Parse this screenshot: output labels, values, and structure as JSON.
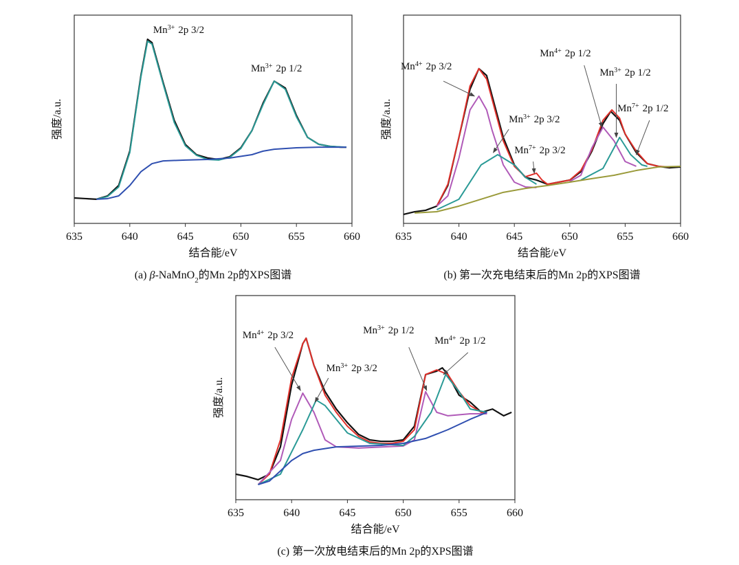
{
  "chart_data": [
    {
      "type": "line",
      "xlabel": "结合能/eV",
      "ylabel": "强度/a.u.",
      "caption": [
        {
          "text": "(a) "
        },
        {
          "text": "β",
          "style": "italic"
        },
        {
          "text": "-NaMnO"
        },
        {
          "text": "2",
          "style": "sub"
        },
        {
          "text": "的Mn 2p的XPS图谱"
        }
      ],
      "xlim": [
        635,
        660
      ],
      "xticks": [
        635,
        640,
        645,
        650,
        655,
        660
      ],
      "ylim": [
        0,
        100
      ],
      "series": [
        {
          "color": "#111111",
          "x": [
            635,
            636,
            637,
            638,
            639,
            640,
            641,
            641.6,
            642,
            643,
            644,
            645,
            646,
            647,
            648,
            649,
            650,
            651,
            652,
            653,
            654,
            655,
            656,
            657,
            658,
            659,
            659.5
          ],
          "values": [
            12.2,
            11.9,
            11.6,
            13.2,
            18.2,
            34.7,
            71.0,
            88.4,
            86.8,
            67.7,
            49.5,
            37.9,
            33.0,
            31.4,
            30.7,
            32.0,
            36.3,
            44.6,
            57.8,
            68.3,
            65.0,
            51.8,
            41.3,
            38.0,
            37.0,
            36.6,
            36.6
          ]
        },
        {
          "color": "#2a9a96",
          "x": [
            637,
            638,
            639,
            640,
            641,
            641.6,
            642,
            643,
            644,
            645,
            646,
            647,
            648,
            649,
            650,
            651,
            652,
            653,
            654,
            655,
            656,
            657,
            658,
            659.5
          ],
          "values": [
            11.6,
            12.9,
            17.5,
            34.0,
            70.3,
            87.5,
            86.1,
            67.0,
            48.5,
            37.3,
            32.7,
            30.7,
            30.4,
            31.7,
            36.0,
            44.6,
            57.1,
            68.3,
            64.4,
            51.2,
            41.3,
            38.0,
            37.0,
            36.6
          ]
        },
        {
          "color": "#2f4fb0",
          "x": [
            637,
            638,
            639,
            640,
            641,
            642,
            643,
            645,
            647,
            649,
            651,
            652,
            653,
            655,
            657,
            659.5
          ],
          "values": [
            11.6,
            11.9,
            13.2,
            18.2,
            24.8,
            28.7,
            30.0,
            30.4,
            30.7,
            31.4,
            33.0,
            34.7,
            35.6,
            36.3,
            36.6,
            36.6
          ]
        }
      ],
      "annotations": [
        {
          "ion": "Mn",
          "charge": "3+",
          "orbital": "2p 3/2",
          "x": 642.1,
          "y": 91.4
        },
        {
          "ion": "Mn",
          "charge": "3+",
          "orbital": "2p 1/2",
          "x": 650.9,
          "y": 72.9
        }
      ]
    },
    {
      "type": "line",
      "xlabel": "结合能/eV",
      "ylabel": "强度/a.u.",
      "caption": [
        {
          "text": "(b) 第一次充电结束后的Mn 2p的XPS图谱"
        }
      ],
      "xlim": [
        635,
        660
      ],
      "xticks": [
        635,
        640,
        645,
        650,
        655,
        660
      ],
      "ylim": [
        0,
        100
      ],
      "series": [
        {
          "color": "#111111",
          "x": [
            635,
            636,
            637,
            638,
            639,
            640,
            641,
            641.8,
            642.5,
            643,
            644,
            645,
            646,
            647,
            648,
            649,
            650,
            651,
            652,
            653,
            653.7,
            654.5,
            655,
            656,
            657,
            658,
            659,
            660
          ],
          "values": [
            4.3,
            5.6,
            6.3,
            8.3,
            18.2,
            41.3,
            64.4,
            74.3,
            71.0,
            61.1,
            41.3,
            28.1,
            22.1,
            20.8,
            18.8,
            19.8,
            20.8,
            24.8,
            34.7,
            47.9,
            53.8,
            49.5,
            42.9,
            34.0,
            28.7,
            27.4,
            26.7,
            27.1
          ]
        },
        {
          "color": "#e0302a",
          "x": [
            638,
            639,
            640,
            641,
            641.8,
            642.5,
            643,
            644,
            645,
            646,
            647,
            647.5,
            648,
            649,
            650,
            651,
            652,
            653,
            653.8,
            654.5,
            655,
            656,
            657,
            658,
            659
          ],
          "values": [
            8.3,
            18.8,
            41.3,
            66.0,
            74.3,
            69.3,
            59.4,
            39.6,
            27.4,
            22.4,
            24.1,
            20.8,
            18.8,
            19.8,
            20.8,
            25.4,
            35.3,
            49.5,
            54.5,
            50.5,
            42.9,
            34.7,
            28.7,
            27.4,
            27.1
          ]
        },
        {
          "color": "#b05ab8",
          "x": [
            638,
            639,
            640,
            641,
            641.8,
            642.5,
            643,
            644,
            645,
            646,
            647,
            648,
            650,
            651,
            652,
            653,
            654,
            655,
            656
          ],
          "values": [
            8.3,
            13.2,
            31.4,
            54.5,
            61.1,
            54.5,
            44.6,
            28.1,
            19.8,
            17.5,
            17.2,
            null,
            20.1,
            23.1,
            36.3,
            46.2,
            39.6,
            29.7,
            27.4
          ]
        },
        {
          "color": "#2a9a96",
          "x": [
            638,
            640,
            642,
            643.5,
            645,
            646,
            647,
            649,
            651,
            653,
            654.5,
            655.5,
            656.5,
            657
          ],
          "values": [
            6.6,
            11.6,
            28.1,
            33.0,
            28.1,
            22.1,
            18.8,
            null,
            20.8,
            26.4,
            41.3,
            33.0,
            28.1,
            27.4
          ]
        },
        {
          "color": "#9a9a3a",
          "x": [
            636,
            638,
            640,
            642,
            644,
            646,
            648,
            650,
            652,
            654,
            656,
            658,
            660
          ],
          "values": [
            5.0,
            5.6,
            8.3,
            11.6,
            14.9,
            16.8,
            18.2,
            19.8,
            21.5,
            23.1,
            25.4,
            27.1,
            27.4
          ]
        }
      ],
      "annotations": [
        {
          "ion": "Mn",
          "charge": "4+",
          "orbital": "2p 3/2",
          "x": 634.75,
          "y": 73.9,
          "arrow": [
            [
              638.6,
              68.3
            ],
            [
              641.4,
              61.1
            ]
          ]
        },
        {
          "ion": "Mn",
          "charge": "4+",
          "orbital": "2p 1/2",
          "x": 647.3,
          "y": 80.2,
          "arrow": [
            [
              651.3,
              75.9
            ],
            [
              652.9,
              46.2
            ]
          ]
        },
        {
          "ion": "Mn",
          "charge": "3+",
          "orbital": "2p 1/2",
          "x": 652.7,
          "y": 71.0,
          "arrow": [
            [
              654.2,
              67.0
            ],
            [
              654.2,
              41.3
            ]
          ]
        },
        {
          "ion": "Mn",
          "charge": "7+",
          "orbital": "2p 1/2",
          "x": 654.3,
          "y": 53.8,
          "arrow": [
            [
              657.2,
              49.5
            ],
            [
              656.0,
              33.0
            ]
          ]
        },
        {
          "ion": "Mn",
          "charge": "3+",
          "orbital": "2p 3/2",
          "x": 644.5,
          "y": 48.5,
          "arrow": [
            [
              644.5,
              45.2
            ],
            [
              643.1,
              34.0
            ]
          ]
        },
        {
          "ion": "Mn",
          "charge": "7+",
          "orbital": "2p 3/2",
          "x": 645.0,
          "y": 33.7,
          "arrow": [
            [
              646.7,
              29.7
            ],
            [
              646.8,
              24.1
            ]
          ]
        }
      ]
    },
    {
      "type": "line",
      "xlabel": "结合能/eV",
      "ylabel": "强度/a.u.",
      "caption": [
        {
          "text": "(c) 第一次放电结束后的Mn 2p的XPS图谱"
        }
      ],
      "xlim": [
        635,
        660
      ],
      "xticks": [
        635,
        640,
        645,
        650,
        655,
        660
      ],
      "ylim": [
        0,
        100
      ],
      "series": [
        {
          "color": "#111111",
          "x": [
            635,
            636,
            637,
            638,
            639,
            640,
            641,
            641.3,
            642,
            643,
            644,
            645,
            646,
            647,
            648,
            649,
            650,
            651,
            652,
            653,
            653.5,
            654,
            655,
            656,
            657,
            658,
            659,
            659.7
          ],
          "values": [
            12.5,
            11.4,
            9.8,
            12.5,
            25.9,
            56.2,
            76.4,
            79.1,
            65.8,
            52.9,
            44.4,
            37.7,
            32.0,
            29.3,
            28.6,
            28.6,
            29.3,
            36.0,
            61.3,
            63.0,
            64.6,
            61.3,
            51.2,
            47.8,
            42.8,
            44.4,
            41.1,
            42.8
          ]
        },
        {
          "color": "#e0302a",
          "x": [
            637,
            638,
            639,
            640,
            641,
            641.3,
            642,
            643,
            644,
            645,
            646,
            647,
            648,
            649,
            650,
            651,
            652,
            653,
            654,
            655,
            656,
            657,
            657.5
          ],
          "values": [
            7.4,
            12.5,
            29.3,
            59.6,
            76.4,
            79.1,
            65.8,
            51.2,
            42.8,
            36.0,
            31.0,
            28.3,
            27.6,
            27.6,
            28.6,
            34.3,
            61.3,
            63.6,
            61.3,
            52.9,
            46.1,
            42.8,
            42.1
          ]
        },
        {
          "color": "#b05ab8",
          "x": [
            637,
            639,
            640,
            641,
            642,
            643,
            644,
            646,
            650,
            651,
            652,
            653,
            654,
            656,
            657.5
          ],
          "values": [
            7.4,
            19.2,
            39.4,
            52.2,
            42.8,
            29.3,
            25.9,
            25.3,
            26.3,
            29.3,
            52.9,
            42.8,
            41.1,
            42.1,
            42.1
          ]
        },
        {
          "color": "#2a9a96",
          "x": [
            637,
            639,
            641,
            642.2,
            643,
            645,
            647,
            650,
            651,
            652.5,
            653.8,
            655,
            656,
            657.5
          ],
          "values": [
            7.4,
            12.5,
            34.3,
            48.8,
            46.1,
            32.7,
            27.6,
            26.6,
            31.0,
            42.8,
            61.3,
            52.9,
            44.4,
            42.8
          ]
        },
        {
          "color": "#2f4fb0",
          "x": [
            637,
            638,
            639,
            640,
            641,
            642,
            644,
            648,
            650,
            652,
            654,
            656,
            657.5
          ],
          "values": [
            7.4,
            9.1,
            14.1,
            19.2,
            22.6,
            24.2,
            25.9,
            26.6,
            27.6,
            30.0,
            34.3,
            39.4,
            42.8
          ]
        }
      ],
      "annotations": [
        {
          "ion": "Mn",
          "charge": "4+",
          "orbital": "2p 3/2",
          "x": 635.6,
          "y": 79.1,
          "arrow": [
            [
              638.5,
              74.7
            ],
            [
              640.8,
              53.5
            ]
          ]
        },
        {
          "ion": "Mn",
          "charge": "3+",
          "orbital": "2p 3/2",
          "x": 643.1,
          "y": 63.0,
          "arrow": [
            [
              643.3,
              59.6
            ],
            [
              642.1,
              47.8
            ]
          ]
        },
        {
          "ion": "Mn",
          "charge": "3+",
          "orbital": "2p 1/2",
          "x": 646.4,
          "y": 81.5,
          "arrow": [
            [
              650.5,
              74.7
            ],
            [
              652.1,
              53.5
            ]
          ]
        },
        {
          "ion": "Mn",
          "charge": "4+",
          "orbital": "2p 1/2",
          "x": 652.8,
          "y": 76.4,
          "arrow": [
            [
              655.8,
              72.1
            ],
            [
              653.6,
              61.3
            ]
          ]
        }
      ]
    }
  ]
}
